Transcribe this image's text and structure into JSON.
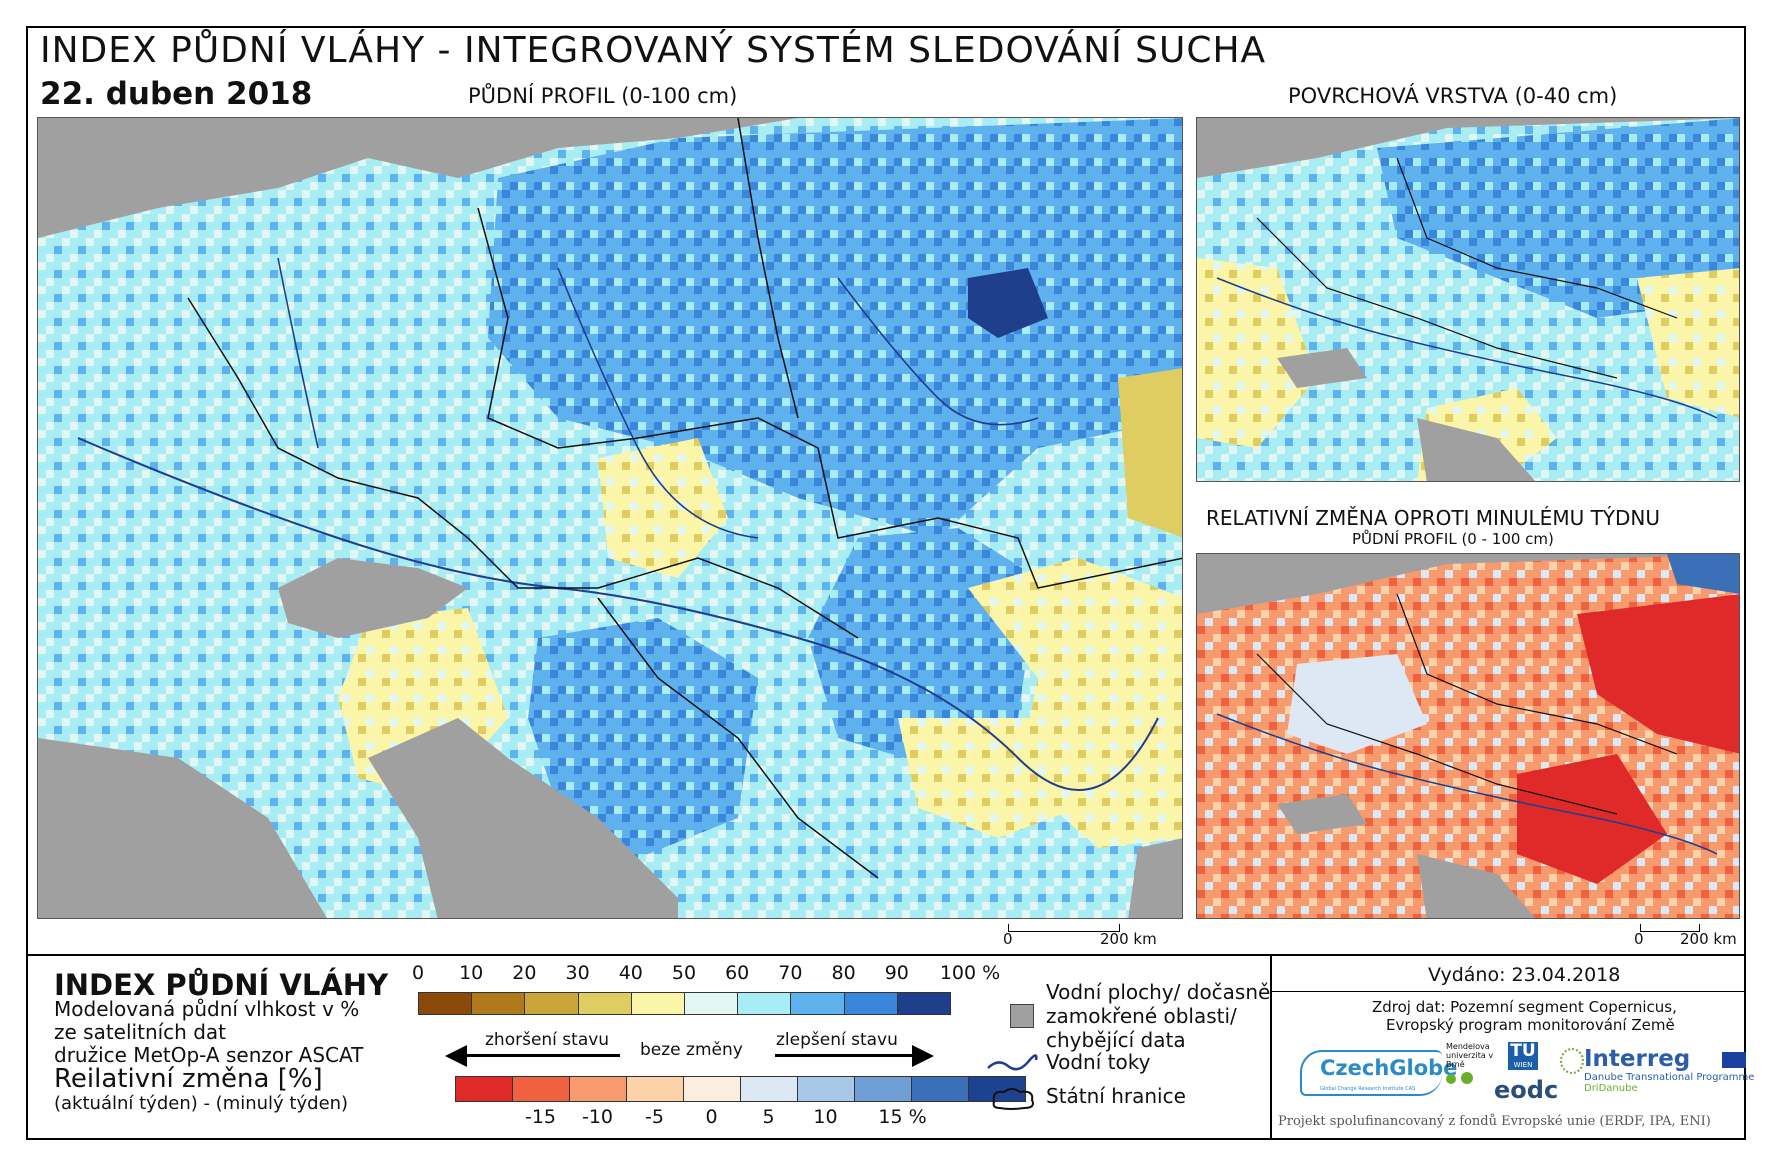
{
  "header": {
    "title": "INDEX PŮDNÍ VLÁHY - INTEGROVANÝ SYSTÉM SLEDOVÁNÍ SUCHA",
    "date": "22. duben 2018",
    "main_map_label": "PŮDNÍ PROFIL (0-100 cm)",
    "top_right_label": "POVRCHOVÁ VRSTVA (0-40 cm)",
    "bottom_right_label": "RELATIVNÍ ZMĚNA OPROTI MINULÉMU TÝDNU",
    "bottom_right_sublabel": "PŮDNÍ PROFIL (0 - 100 cm)"
  },
  "scalebars": {
    "main": {
      "zero": "0",
      "end": "200 km"
    },
    "inset": {
      "zero": "0",
      "end": "200 km"
    }
  },
  "legend": {
    "title": "INDEX PŮDNÍ VLÁHY",
    "desc_line1": "Modelovaná půdní vlhkost v %",
    "desc_line2": "ze satelitních dat",
    "desc_line3": "družice MetOp-A senzor ASCAT",
    "rel_title": "Reilativní změna [%]",
    "rel_sub": "(aktuální týden) - (minulý týden)",
    "index_ticks": [
      "0",
      "10",
      "20",
      "30",
      "40",
      "50",
      "60",
      "70",
      "80",
      "90",
      "100 %"
    ],
    "index_colors": [
      "#8b4a0a",
      "#b07a1c",
      "#c9a53a",
      "#e0cd62",
      "#faf5a8",
      "#e2f7f1",
      "#a8ecf4",
      "#5fb1ee",
      "#3a86db",
      "#1f3e8c"
    ],
    "arrow_left": "zhoršení stavu",
    "arrow_mid": "beze změny",
    "arrow_right": "zlepšení stavu",
    "change_ticks": [
      "-15",
      "-10",
      "-5",
      "0",
      "5",
      "10",
      "15 %"
    ],
    "change_colors": [
      "#e02a2a",
      "#f0623f",
      "#f79a6e",
      "#fcd2aa",
      "#fbeede",
      "#dce9f4",
      "#a9c7e6",
      "#6f9fd4",
      "#3b6fb8",
      "#1d4290"
    ],
    "water_label_1": "Vodní plochy/ dočasně",
    "water_label_2": "zamokřené oblasti/",
    "water_label_3": "chybějící data",
    "rivers_label": "Vodní toky",
    "borders_label": "Státní hranice"
  },
  "info": {
    "issued": "Vydáno: 23.04.2018",
    "source_1": "Zdroj dat: Pozemní segment Copernicus,",
    "source_2": "Evropský program monitorování Země",
    "logo_czechglobe": "CzechGlobe",
    "logo_czechglobe_sub": "Global Change Research Institute CAS",
    "logo_mendel": "Mendelova univerzita v Brně",
    "logo_tu": "TU",
    "logo_tu_sub": "WIEN",
    "logo_eodc": "eodc",
    "logo_interreg": "Interreg",
    "logo_interreg_sub1": "Danube Transnational Programme",
    "logo_interreg_sub2": "DriDanube",
    "funding": "Projekt spolufinancovaný z fondů Evropské unie (ERDF, IPA, ENI)"
  }
}
